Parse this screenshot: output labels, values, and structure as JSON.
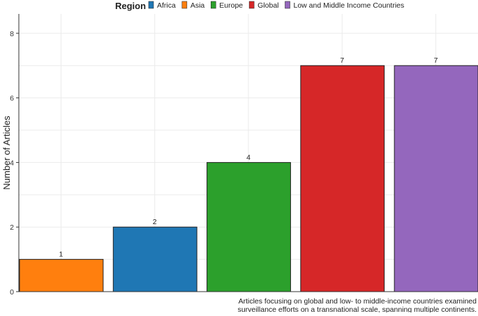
{
  "chart_data": {
    "type": "bar",
    "categories": [
      "Asia",
      "Africa",
      "Europe",
      "Global",
      "Low and Middle Income Countries"
    ],
    "values": [
      1,
      2,
      4,
      7,
      7
    ],
    "colors": [
      "#ff7f0e",
      "#1f77b4",
      "#2ca02c",
      "#d62728",
      "#9467bd"
    ],
    "ylabel": "Number of Articles",
    "xlabel": "",
    "ylim": [
      0,
      8.6
    ],
    "yticks": [
      0,
      2,
      4,
      6,
      8
    ],
    "grid": true,
    "legend": {
      "title": "Region",
      "placement": "top",
      "entries": [
        {
          "label": "Africa",
          "color": "#1f77b4"
        },
        {
          "label": "Asia",
          "color": "#ff7f0e"
        },
        {
          "label": "Europe",
          "color": "#2ca02c"
        },
        {
          "label": "Global",
          "color": "#d62728"
        },
        {
          "label": "Low and Middle Income Countries",
          "color": "#9467bd"
        }
      ]
    },
    "caption": [
      "Articles focusing on global and low- to middle-income countries examined",
      "surveillance efforts on a transnational scale, spanning multiple continents."
    ]
  }
}
